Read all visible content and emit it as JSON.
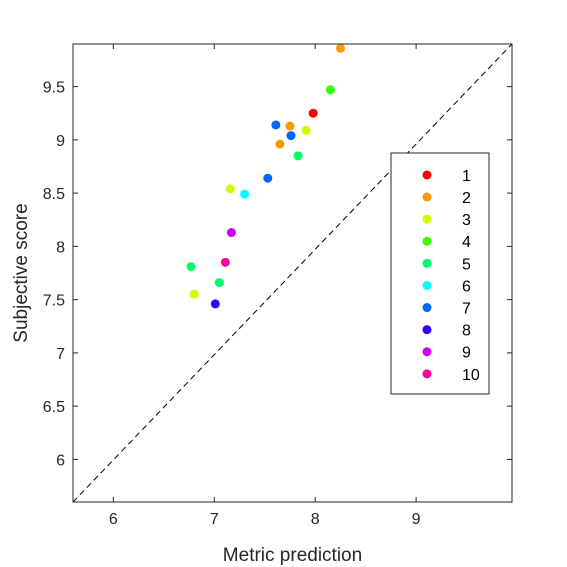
{
  "chart_data": {
    "type": "scatter",
    "title": "",
    "xlabel": "Metric prediction",
    "ylabel": "Subjective score",
    "xlim": [
      5.6,
      9.95
    ],
    "ylim": [
      5.6,
      9.9
    ],
    "xticks": [
      6,
      7,
      8,
      9
    ],
    "yticks": [
      6,
      6.5,
      7,
      7.5,
      8,
      8.5,
      9,
      9.5
    ],
    "xtick_labels": [
      "6",
      "7",
      "8",
      "9"
    ],
    "ytick_labels": [
      "6",
      "6.5",
      "7",
      "7.5",
      "8",
      "8.5",
      "9",
      "9.5"
    ],
    "grid": false,
    "reference_line": {
      "style": "dashed",
      "color": "#000000",
      "x": [
        5.6,
        9.95
      ],
      "y": [
        5.6,
        9.95
      ]
    },
    "legend": {
      "placement": "right"
    },
    "series": [
      {
        "name": "1",
        "color": "#ff0000",
        "points": [
          {
            "x": 7.98,
            "y": 9.25
          }
        ]
      },
      {
        "name": "2",
        "color": "#ff9900",
        "points": [
          {
            "x": 8.25,
            "y": 9.86
          },
          {
            "x": 7.75,
            "y": 9.13
          },
          {
            "x": 7.65,
            "y": 8.96
          }
        ]
      },
      {
        "name": "3",
        "color": "#ccff00",
        "points": [
          {
            "x": 7.91,
            "y": 9.09
          },
          {
            "x": 7.16,
            "y": 8.54
          },
          {
            "x": 6.8,
            "y": 7.55
          }
        ]
      },
      {
        "name": "4",
        "color": "#33ff00",
        "points": [
          {
            "x": 8.15,
            "y": 9.47
          }
        ]
      },
      {
        "name": "5",
        "color": "#00ff66",
        "points": [
          {
            "x": 7.83,
            "y": 8.85
          },
          {
            "x": 6.77,
            "y": 7.81
          },
          {
            "x": 7.05,
            "y": 7.66
          }
        ]
      },
      {
        "name": "6",
        "color": "#00ffff",
        "points": [
          {
            "x": 7.3,
            "y": 8.49
          }
        ]
      },
      {
        "name": "7",
        "color": "#0066ff",
        "points": [
          {
            "x": 7.61,
            "y": 9.14
          },
          {
            "x": 7.76,
            "y": 9.04
          },
          {
            "x": 7.53,
            "y": 8.64
          }
        ]
      },
      {
        "name": "8",
        "color": "#3300ff",
        "points": [
          {
            "x": 7.01,
            "y": 7.46
          }
        ]
      },
      {
        "name": "9",
        "color": "#cc00ff",
        "points": [
          {
            "x": 7.17,
            "y": 8.13
          }
        ]
      },
      {
        "name": "10",
        "color": "#ff0099",
        "points": [
          {
            "x": 7.11,
            "y": 7.85
          }
        ]
      }
    ]
  }
}
